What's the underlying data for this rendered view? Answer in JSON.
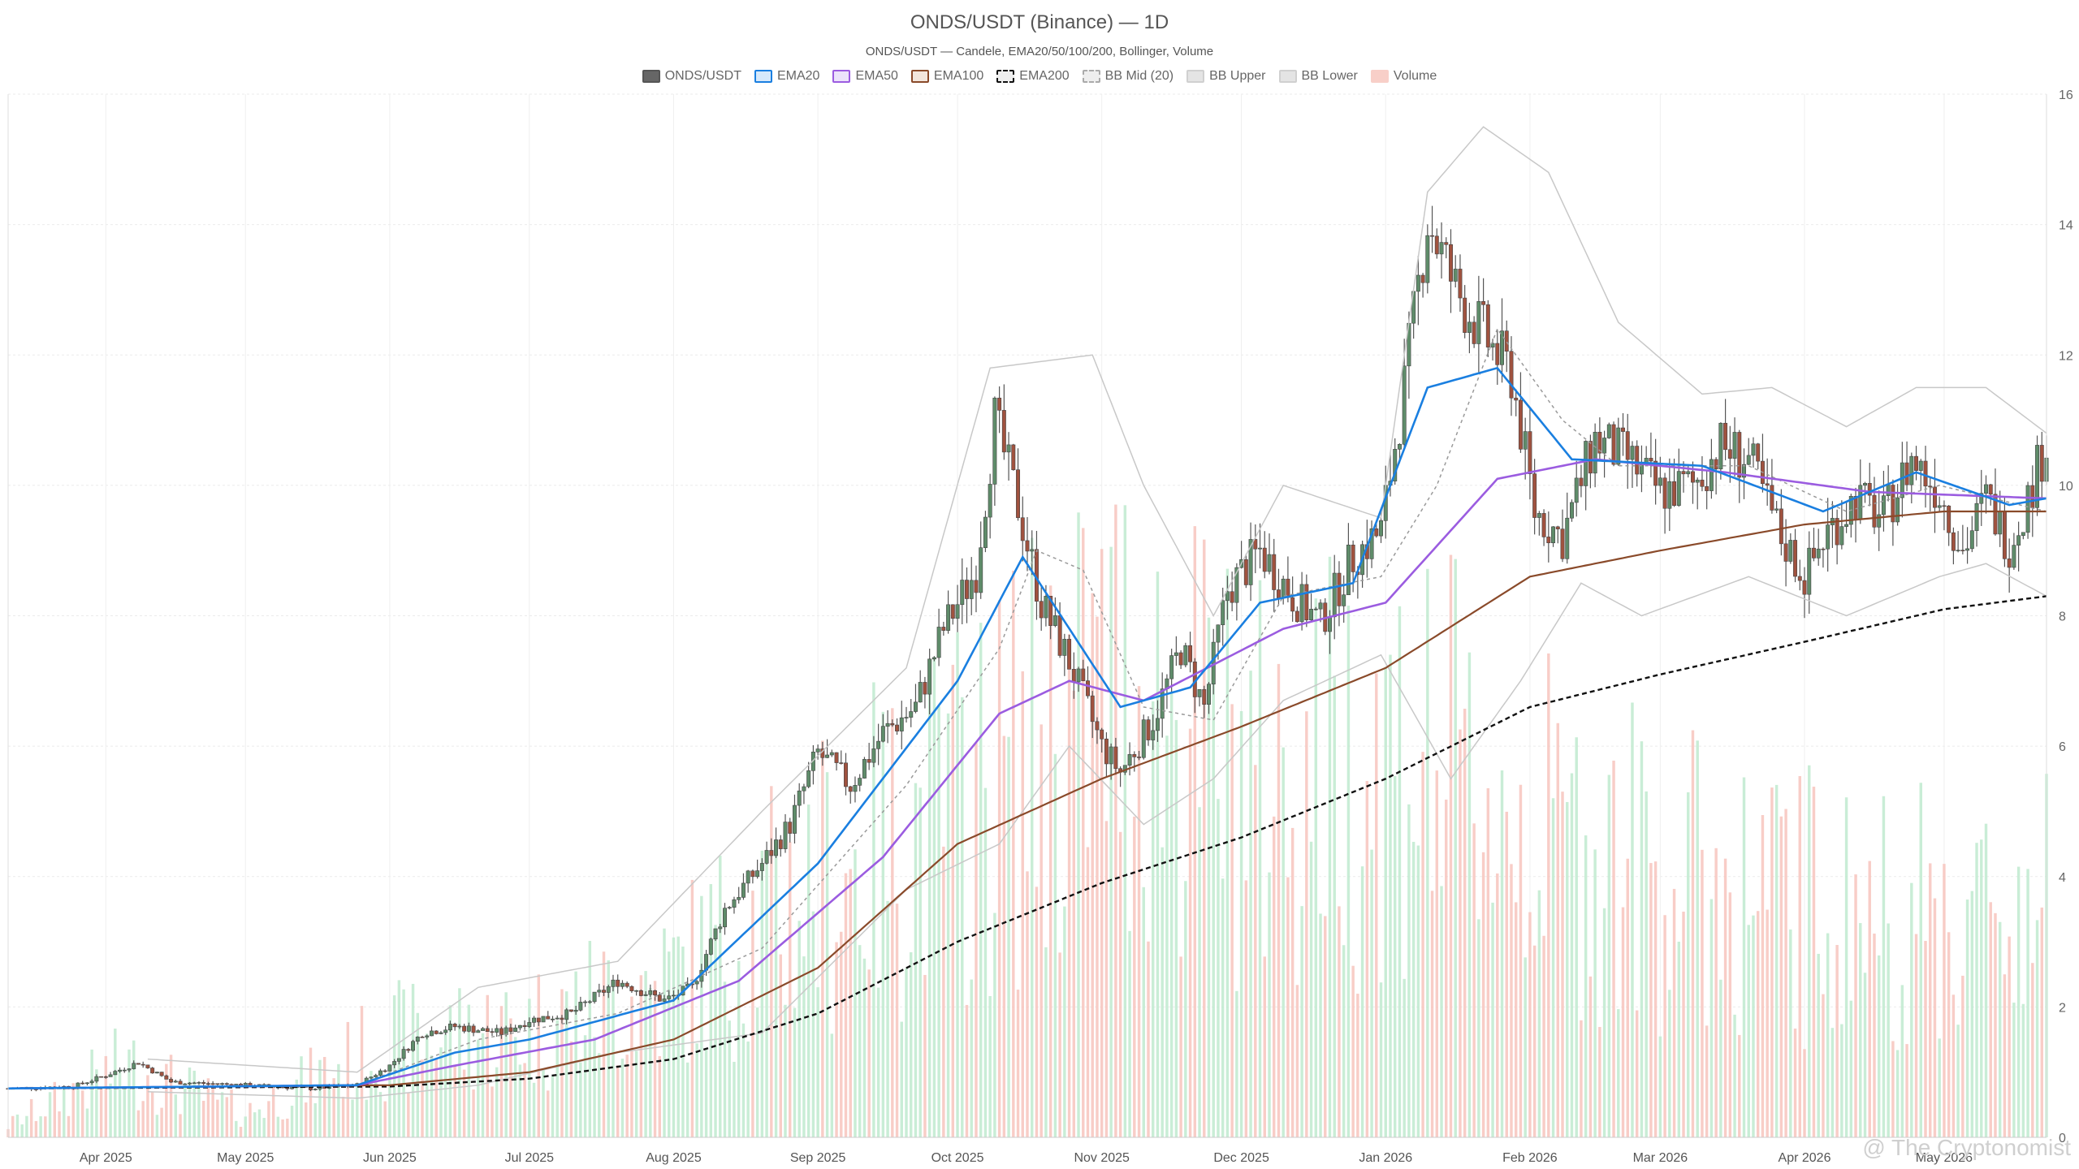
{
  "window": {
    "title": "ONDS/USDT (Binance) — 1D"
  },
  "chart_data": {
    "type": "candlestick",
    "title": "ONDS/USDT (Binance) — 1D",
    "subtitle": "ONDS/USDT — Candele, EMA20/50/100/200, Bollinger, Volume",
    "legend": [
      {
        "label": "ONDS/USDT",
        "fill": "#666666",
        "border": "#555555",
        "style": "solid"
      },
      {
        "label": "EMA20",
        "fill": "#d6e9fb",
        "border": "#1a7fe0",
        "style": "solid"
      },
      {
        "label": "EMA50",
        "fill": "#ece3fb",
        "border": "#9b5ce0",
        "style": "solid"
      },
      {
        "label": "EMA100",
        "fill": "#f3e6dc",
        "border": "#8a4a2a",
        "style": "solid"
      },
      {
        "label": "EMA200",
        "fill": "#eeeeee",
        "border": "#111111",
        "style": "dashed"
      },
      {
        "label": "BB Mid (20)",
        "fill": "#eeeeee",
        "border": "#aaaaaa",
        "style": "dashed"
      },
      {
        "label": "BB Upper",
        "fill": "#e4e4e4",
        "border": "#d0d0d0",
        "style": "solid"
      },
      {
        "label": "BB Lower",
        "fill": "#e4e4e4",
        "border": "#d0d0d0",
        "style": "solid"
      },
      {
        "label": "Volume",
        "fill": "#f8cfc8",
        "border": "#f8cfc8",
        "style": "solid"
      }
    ],
    "x_ticks": [
      "Apr 2025",
      "May 2025",
      "Jun 2025",
      "Jul 2025",
      "Aug 2025",
      "Sep 2025",
      "Oct 2025",
      "Nov 2025",
      "Dec 2025",
      "Jan 2026",
      "Feb 2026",
      "Mar 2026",
      "Apr 2026",
      "May 2026"
    ],
    "y_ticks": [
      "0",
      "2",
      "4",
      "6",
      "8",
      "10",
      "12",
      "14",
      "16"
    ],
    "ylim": [
      0,
      16
    ],
    "xlim": [
      "2025-03-11",
      "2026-05-23"
    ],
    "colors": {
      "up": "#5f8c6a",
      "down": "#a0523f",
      "vol_up": "#bfeacf",
      "vol_down": "#f7c4bd"
    },
    "close_anchors": [
      [
        "2025-03-11",
        0.75
      ],
      [
        "2025-03-25",
        0.78
      ],
      [
        "2025-04-01",
        0.95
      ],
      [
        "2025-04-08",
        1.15
      ],
      [
        "2025-04-15",
        0.85
      ],
      [
        "2025-05-01",
        0.8
      ],
      [
        "2025-05-15",
        0.75
      ],
      [
        "2025-05-25",
        0.8
      ],
      [
        "2025-06-01",
        1.1
      ],
      [
        "2025-06-08",
        1.6
      ],
      [
        "2025-06-15",
        1.7
      ],
      [
        "2025-06-25",
        1.6
      ],
      [
        "2025-07-01",
        1.8
      ],
      [
        "2025-07-10",
        1.9
      ],
      [
        "2025-07-20",
        2.4
      ],
      [
        "2025-07-30",
        2.1
      ],
      [
        "2025-08-05",
        2.3
      ],
      [
        "2025-08-12",
        3.5
      ],
      [
        "2025-08-20",
        4.2
      ],
      [
        "2025-08-26",
        4.8
      ],
      [
        "2025-09-01",
        5.9
      ],
      [
        "2025-09-08",
        5.4
      ],
      [
        "2025-09-15",
        6.2
      ],
      [
        "2025-09-22",
        6.6
      ],
      [
        "2025-09-28",
        7.8
      ],
      [
        "2025-10-05",
        8.7
      ],
      [
        "2025-10-09",
        11.0
      ],
      [
        "2025-10-14",
        9.7
      ],
      [
        "2025-10-19",
        8.2
      ],
      [
        "2025-10-25",
        7.3
      ],
      [
        "2025-11-01",
        6.0
      ],
      [
        "2025-11-05",
        5.6
      ],
      [
        "2025-11-12",
        6.4
      ],
      [
        "2025-11-18",
        7.5
      ],
      [
        "2025-11-23",
        6.6
      ],
      [
        "2025-11-28",
        8.4
      ],
      [
        "2025-12-05",
        9.0
      ],
      [
        "2025-12-12",
        8.3
      ],
      [
        "2025-12-18",
        7.9
      ],
      [
        "2025-12-25",
        8.9
      ],
      [
        "2025-12-31",
        9.3
      ],
      [
        "2026-01-05",
        11.5
      ],
      [
        "2026-01-10",
        14.1
      ],
      [
        "2026-01-16",
        13.0
      ],
      [
        "2026-01-22",
        12.3
      ],
      [
        "2026-01-28",
        11.7
      ],
      [
        "2026-02-02",
        9.6
      ],
      [
        "2026-02-08",
        9.2
      ],
      [
        "2026-02-15",
        10.7
      ],
      [
        "2026-02-22",
        10.4
      ],
      [
        "2026-03-01",
        9.9
      ],
      [
        "2026-03-08",
        10.0
      ],
      [
        "2026-03-14",
        10.6
      ],
      [
        "2026-03-20",
        10.4
      ],
      [
        "2026-03-27",
        9.2
      ],
      [
        "2026-04-01",
        8.6
      ],
      [
        "2026-04-06",
        9.3
      ],
      [
        "2026-04-12",
        9.8
      ],
      [
        "2026-04-18",
        9.5
      ],
      [
        "2026-04-24",
        10.4
      ],
      [
        "2026-04-30",
        9.9
      ],
      [
        "2026-05-05",
        9.0
      ],
      [
        "2026-05-10",
        9.8
      ],
      [
        "2026-05-15",
        9.1
      ],
      [
        "2026-05-19",
        9.8
      ],
      [
        "2026-05-23",
        10.7
      ]
    ],
    "volume_anchors": [
      [
        "2025-03-11",
        0.2
      ],
      [
        "2025-04-05",
        1.2
      ],
      [
        "2025-05-01",
        0.4
      ],
      [
        "2025-06-01",
        1.6
      ],
      [
        "2025-07-01",
        1.8
      ],
      [
        "2025-08-01",
        2.6
      ],
      [
        "2025-09-01",
        4.2
      ],
      [
        "2025-10-05",
        5.6
      ],
      [
        "2025-11-05",
        7.5
      ],
      [
        "2025-12-05",
        5.8
      ],
      [
        "2026-01-05",
        6.5
      ],
      [
        "2026-02-05",
        5.0
      ],
      [
        "2026-03-05",
        4.3
      ],
      [
        "2026-04-05",
        3.8
      ],
      [
        "2026-05-05",
        3.6
      ],
      [
        "2026-05-23",
        4.0
      ]
    ],
    "ema20_anchors": [
      [
        "2025-03-11",
        0.75
      ],
      [
        "2025-05-25",
        0.8
      ],
      [
        "2025-06-15",
        1.3
      ],
      [
        "2025-07-01",
        1.5
      ],
      [
        "2025-08-01",
        2.1
      ],
      [
        "2025-09-01",
        4.2
      ],
      [
        "2025-10-01",
        7.0
      ],
      [
        "2025-10-15",
        8.9
      ],
      [
        "2025-11-05",
        6.6
      ],
      [
        "2025-11-20",
        6.9
      ],
      [
        "2025-12-05",
        8.2
      ],
      [
        "2025-12-25",
        8.5
      ],
      [
        "2026-01-10",
        11.5
      ],
      [
        "2026-01-25",
        11.8
      ],
      [
        "2026-02-10",
        10.4
      ],
      [
        "2026-03-10",
        10.3
      ],
      [
        "2026-04-05",
        9.6
      ],
      [
        "2026-04-25",
        10.2
      ],
      [
        "2026-05-15",
        9.7
      ],
      [
        "2026-05-23",
        9.8
      ]
    ],
    "ema50_anchors": [
      [
        "2025-03-11",
        0.75
      ],
      [
        "2025-05-25",
        0.8
      ],
      [
        "2025-06-15",
        1.1
      ],
      [
        "2025-07-15",
        1.5
      ],
      [
        "2025-08-15",
        2.4
      ],
      [
        "2025-09-15",
        4.3
      ],
      [
        "2025-10-10",
        6.5
      ],
      [
        "2025-10-25",
        7.0
      ],
      [
        "2025-11-10",
        6.7
      ],
      [
        "2025-12-10",
        7.8
      ],
      [
        "2026-01-01",
        8.2
      ],
      [
        "2026-01-25",
        10.1
      ],
      [
        "2026-02-15",
        10.4
      ],
      [
        "2026-03-15",
        10.2
      ],
      [
        "2026-04-15",
        9.9
      ],
      [
        "2026-05-23",
        9.8
      ]
    ],
    "ema100_anchors": [
      [
        "2025-03-11",
        0.75
      ],
      [
        "2025-06-01",
        0.8
      ],
      [
        "2025-07-01",
        1.0
      ],
      [
        "2025-08-01",
        1.5
      ],
      [
        "2025-09-01",
        2.6
      ],
      [
        "2025-10-01",
        4.5
      ],
      [
        "2025-11-01",
        5.5
      ],
      [
        "2025-12-01",
        6.3
      ],
      [
        "2026-01-01",
        7.2
      ],
      [
        "2026-02-01",
        8.6
      ],
      [
        "2026-03-01",
        9.0
      ],
      [
        "2026-04-01",
        9.4
      ],
      [
        "2026-05-01",
        9.6
      ],
      [
        "2026-05-23",
        9.6
      ]
    ],
    "ema200_anchors": [
      [
        "2025-03-11",
        0.75
      ],
      [
        "2025-06-01",
        0.78
      ],
      [
        "2025-07-01",
        0.9
      ],
      [
        "2025-08-01",
        1.2
      ],
      [
        "2025-09-01",
        1.9
      ],
      [
        "2025-10-01",
        3.0
      ],
      [
        "2025-11-01",
        3.9
      ],
      [
        "2025-12-01",
        4.6
      ],
      [
        "2026-01-01",
        5.5
      ],
      [
        "2026-02-01",
        6.6
      ],
      [
        "2026-03-01",
        7.1
      ],
      [
        "2026-04-01",
        7.6
      ],
      [
        "2026-05-01",
        8.1
      ],
      [
        "2026-05-23",
        8.3
      ]
    ],
    "bb_mid_anchors": [
      [
        "2025-05-25",
        0.8
      ],
      [
        "2025-06-20",
        1.5
      ],
      [
        "2025-07-20",
        1.9
      ],
      [
        "2025-08-20",
        2.9
      ],
      [
        "2025-09-20",
        5.4
      ],
      [
        "2025-10-10",
        7.5
      ],
      [
        "2025-10-18",
        9.0
      ],
      [
        "2025-10-28",
        8.7
      ],
      [
        "2025-11-10",
        6.6
      ],
      [
        "2025-11-25",
        6.4
      ],
      [
        "2025-12-10",
        8.3
      ],
      [
        "2025-12-31",
        8.6
      ],
      [
        "2026-01-12",
        10.0
      ],
      [
        "2026-01-25",
        12.4
      ],
      [
        "2026-02-08",
        11.0
      ],
      [
        "2026-02-20",
        10.3
      ],
      [
        "2026-03-20",
        10.3
      ],
      [
        "2026-04-10",
        9.6
      ],
      [
        "2026-04-30",
        10.0
      ],
      [
        "2026-05-23",
        9.6
      ]
    ],
    "bb_upper_anchors": [
      [
        "2025-04-10",
        1.2
      ],
      [
        "2025-05-25",
        1.0
      ],
      [
        "2025-06-20",
        2.3
      ],
      [
        "2025-07-20",
        2.7
      ],
      [
        "2025-08-20",
        5.0
      ],
      [
        "2025-09-20",
        7.2
      ],
      [
        "2025-10-08",
        11.8
      ],
      [
        "2025-10-30",
        12.0
      ],
      [
        "2025-11-10",
        10.0
      ],
      [
        "2025-11-25",
        8.0
      ],
      [
        "2025-12-10",
        10.0
      ],
      [
        "2025-12-31",
        9.5
      ],
      [
        "2026-01-10",
        14.5
      ],
      [
        "2026-01-22",
        15.5
      ],
      [
        "2026-02-05",
        14.8
      ],
      [
        "2026-02-20",
        12.5
      ],
      [
        "2026-03-10",
        11.4
      ],
      [
        "2026-03-25",
        11.5
      ],
      [
        "2026-04-10",
        10.9
      ],
      [
        "2026-04-25",
        11.5
      ],
      [
        "2026-05-10",
        11.5
      ],
      [
        "2026-05-23",
        10.8
      ]
    ],
    "bb_lower_anchors": [
      [
        "2025-04-10",
        0.7
      ],
      [
        "2025-05-25",
        0.6
      ],
      [
        "2025-06-20",
        0.8
      ],
      [
        "2025-07-20",
        1.3
      ],
      [
        "2025-08-20",
        1.6
      ],
      [
        "2025-09-20",
        3.8
      ],
      [
        "2025-10-10",
        4.5
      ],
      [
        "2025-10-25",
        6.0
      ],
      [
        "2025-11-10",
        4.8
      ],
      [
        "2025-11-25",
        5.5
      ],
      [
        "2025-12-10",
        6.7
      ],
      [
        "2025-12-31",
        7.4
      ],
      [
        "2026-01-15",
        5.5
      ],
      [
        "2026-01-30",
        7.0
      ],
      [
        "2026-02-12",
        8.5
      ],
      [
        "2026-02-25",
        8.0
      ],
      [
        "2026-03-20",
        8.6
      ],
      [
        "2026-04-10",
        8.0
      ],
      [
        "2026-04-30",
        8.6
      ],
      [
        "2026-05-10",
        8.8
      ],
      [
        "2026-05-23",
        8.3
      ]
    ]
  },
  "watermark": "@ The Cryptonomist"
}
